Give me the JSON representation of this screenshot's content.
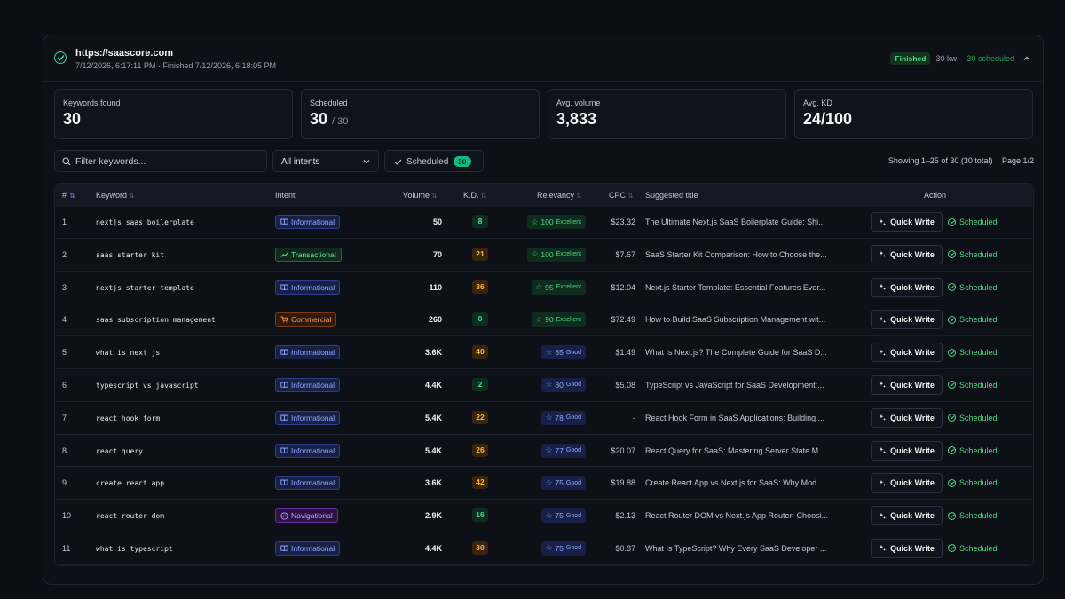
{
  "header": {
    "url": "https://saascore.com",
    "meta": "7/12/2026, 6:17:11 PM · Finished 7/12/2026, 6:18:05 PM",
    "status_badge": "Finished",
    "kw_count": "30 kw",
    "scheduled_summary": "· 30 scheduled",
    "status_color": "#4ade80"
  },
  "stats": [
    {
      "label": "Keywords found",
      "value": "30",
      "suffix": ""
    },
    {
      "label": "Scheduled",
      "value": "30",
      "suffix": "/ 30"
    },
    {
      "label": "Avg. volume",
      "value": "3,833",
      "suffix": ""
    },
    {
      "label": "Avg. KD",
      "value": "24/100",
      "suffix": ""
    }
  ],
  "toolbar": {
    "search_placeholder": "Filter keywords...",
    "intent_filter": "All intents",
    "scheduled_label": "Scheduled",
    "scheduled_count": "30",
    "showing": "Showing 1–25 of 30 (30 total)",
    "page": "Page 1/2"
  },
  "table": {
    "columns": {
      "num": "#",
      "keyword": "Keyword",
      "intent": "Intent",
      "volume": "Volume",
      "kd": "K.D.",
      "relevancy": "Relevancy",
      "cpc": "CPC",
      "title": "Suggested title",
      "action": "Action"
    },
    "quick_write_label": "Quick Write",
    "scheduled_status": "Scheduled",
    "rows": [
      {
        "num": "1",
        "keyword": "nextjs saas boilerplate",
        "intent": "Informational",
        "intent_type": "info",
        "volume": "50",
        "kd": "8",
        "kd_level": "green",
        "rel": "100",
        "rel_label": "Excellent",
        "rel_level": "ex",
        "cpc": "$23.32",
        "title": "The Ultimate Next.js SaaS Boilerplate Guide: Shi..."
      },
      {
        "num": "2",
        "keyword": "saas starter kit",
        "intent": "Transactional",
        "intent_type": "trans",
        "volume": "70",
        "kd": "21",
        "kd_level": "orange",
        "rel": "100",
        "rel_label": "Excellent",
        "rel_level": "ex",
        "cpc": "$7.67",
        "title": "SaaS Starter Kit Comparison: How to Choose the..."
      },
      {
        "num": "3",
        "keyword": "nextjs starter template",
        "intent": "Informational",
        "intent_type": "info",
        "volume": "110",
        "kd": "36",
        "kd_level": "orange",
        "rel": "95",
        "rel_label": "Excellent",
        "rel_level": "ex",
        "cpc": "$12.04",
        "title": "Next.js Starter Template: Essential Features Ever..."
      },
      {
        "num": "4",
        "keyword": "saas subscription management",
        "intent": "Commercial",
        "intent_type": "comm",
        "volume": "260",
        "kd": "0",
        "kd_level": "green",
        "rel": "90",
        "rel_label": "Excellent",
        "rel_level": "ex",
        "cpc": "$72.49",
        "title": "How to Build SaaS Subscription Management wit..."
      },
      {
        "num": "5",
        "keyword": "what is next js",
        "intent": "Informational",
        "intent_type": "info",
        "volume": "3.6K",
        "kd": "40",
        "kd_level": "orange",
        "rel": "85",
        "rel_label": "Good",
        "rel_level": "good",
        "cpc": "$1.49",
        "title": "What Is Next.js? The Complete Guide for SaaS D..."
      },
      {
        "num": "6",
        "keyword": "typescript vs javascript",
        "intent": "Informational",
        "intent_type": "info",
        "volume": "4.4K",
        "kd": "2",
        "kd_level": "green",
        "rel": "80",
        "rel_label": "Good",
        "rel_level": "good",
        "cpc": "$5.08",
        "title": "TypeScript vs JavaScript for SaaS Development:..."
      },
      {
        "num": "7",
        "keyword": "react hook form",
        "intent": "Informational",
        "intent_type": "info",
        "volume": "5.4K",
        "kd": "22",
        "kd_level": "orange",
        "rel": "78",
        "rel_label": "Good",
        "rel_level": "good",
        "cpc": "-",
        "title": "React Hook Form in SaaS Applications: Building ..."
      },
      {
        "num": "8",
        "keyword": "react query",
        "intent": "Informational",
        "intent_type": "info",
        "volume": "5.4K",
        "kd": "26",
        "kd_level": "orange",
        "rel": "77",
        "rel_label": "Good",
        "rel_level": "good",
        "cpc": "$20.07",
        "title": "React Query for SaaS: Mastering Server State M..."
      },
      {
        "num": "9",
        "keyword": "create react app",
        "intent": "Informational",
        "intent_type": "info",
        "volume": "3.6K",
        "kd": "42",
        "kd_level": "orange",
        "rel": "75",
        "rel_label": "Good",
        "rel_level": "good",
        "cpc": "$19.88",
        "title": "Create React App vs Next.js for SaaS: Why Mod..."
      },
      {
        "num": "10",
        "keyword": "react router dom",
        "intent": "Navigational",
        "intent_type": "nav",
        "volume": "2.9K",
        "kd": "16",
        "kd_level": "green",
        "rel": "75",
        "rel_label": "Good",
        "rel_level": "good",
        "cpc": "$2.13",
        "title": "React Router DOM vs Next.js App Router: Choosi..."
      },
      {
        "num": "11",
        "keyword": "what is typescript",
        "intent": "Informational",
        "intent_type": "info",
        "volume": "4.4K",
        "kd": "30",
        "kd_level": "orange",
        "rel": "75",
        "rel_label": "Good",
        "rel_level": "good",
        "cpc": "$0.87",
        "title": "What Is TypeScript? Why Every SaaS Developer ..."
      }
    ]
  }
}
